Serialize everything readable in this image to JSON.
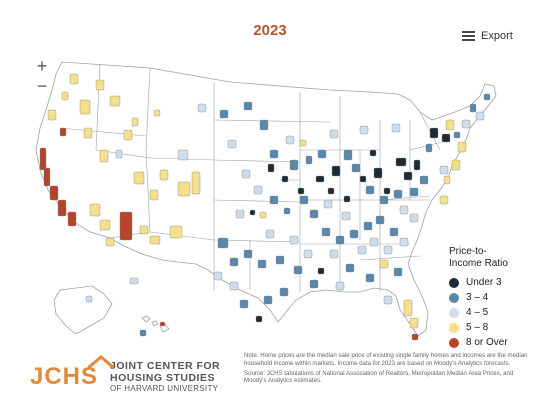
{
  "map_title": "2023",
  "export_label": "Export",
  "zoom": {
    "in_label": "+",
    "out_label": "−"
  },
  "legend": {
    "title": "Price-to-Income Ratio",
    "items": [
      {
        "label": "Under 3",
        "color": "#1e2b33"
      },
      {
        "label": "3 – 4",
        "color": "#5b87a8"
      },
      {
        "label": "4 – 5",
        "color": "#cfdde8"
      },
      {
        "label": "5 – 8",
        "color": "#f4df8a"
      },
      {
        "label": "8 or Over",
        "color": "#b5442a"
      }
    ]
  },
  "notes": {
    "note": "Note: Home prices are the median sale price of existing single family homes and incomes are the median household income within markets. Income data for 2023 are based on Moody's Analytics forecasts.",
    "source": "Source: JCHS tabulations of National Association of Realtors, Metropolitan Median Area Prices, and Moody's Analytics estimates."
  },
  "logo": {
    "mark": "JCHS",
    "line1": "JOINT CENTER FOR",
    "line2": "HOUSING STUDIES",
    "line3": "OF HARVARD UNIVERSITY",
    "color": "#e08a3c"
  },
  "map_data": {
    "map_type": "choropleth",
    "region": "United States metropolitan areas",
    "colors": {
      "under_3": "#1e2b33",
      "3_4": "#5b87a8",
      "4_5": "#cfdde8",
      "5_8": "#f4df8a",
      "8_plus": "#b5442a",
      "no_data": "#ffffff",
      "border": "#9aa3a9"
    }
  }
}
